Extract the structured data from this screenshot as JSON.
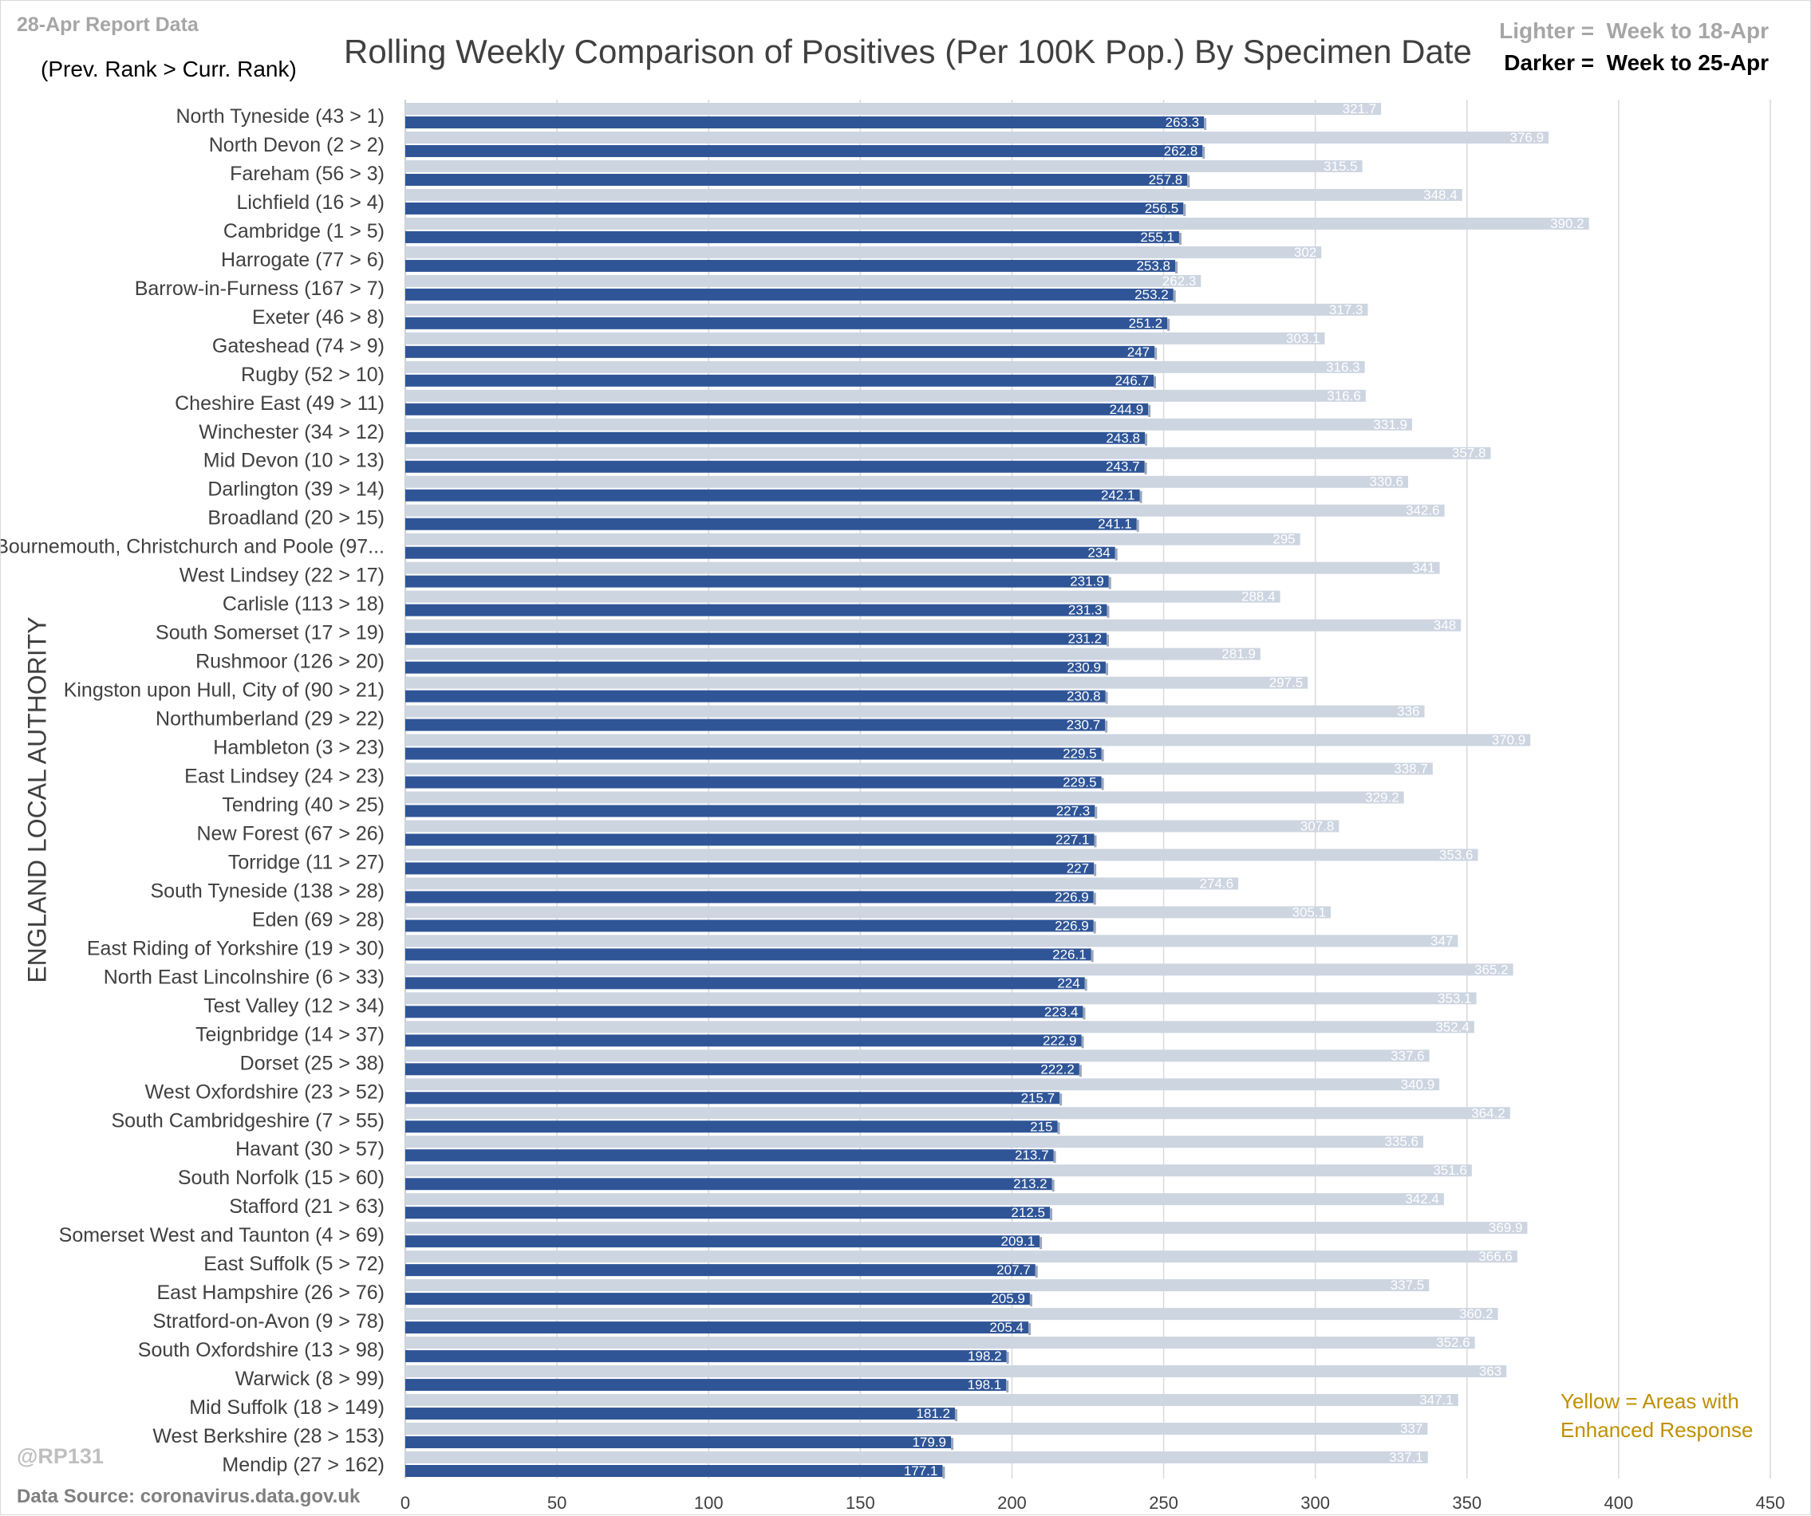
{
  "report_label": "28-Apr Report Data",
  "rank_note": "(Prev. Rank > Curr. Rank)",
  "legend": {
    "lighter_prefix": "Lighter =  ",
    "lighter_text": "Week to 18-Apr",
    "darker_prefix": "Darker =  ",
    "darker_text": "Week to 25-Apr"
  },
  "yellow_note_line1": "Yellow = Areas with",
  "yellow_note_line2": "Enhanced Response",
  "handle": "@RP131",
  "source": "Data Source: coronavirus.data.gov.uk",
  "colors": {
    "lighter": "#cdd5e1",
    "darker": "#2f5597",
    "grid": "#d9d9d9",
    "label": "#404040",
    "yellow_note": "#bf9000"
  },
  "chart_data": {
    "type": "bar",
    "orientation": "horizontal",
    "title": "Rolling Weekly Comparison of Positives  (Per 100K Pop.) By Specimen Date",
    "xlabel": "",
    "ylabel": "ENGLAND LOCAL AUTHORITY",
    "xlim": [
      0,
      450
    ],
    "xticks": [
      0,
      50,
      100,
      150,
      200,
      250,
      300,
      350,
      400,
      450
    ],
    "grid": "vertical",
    "legend_position": "top-right",
    "categories": [
      "North Tyneside (43 > 1)",
      "North Devon (2 > 2)",
      "Fareham (56 > 3)",
      "Lichfield (16 > 4)",
      "Cambridge (1 > 5)",
      "Harrogate (77 > 6)",
      "Barrow-in-Furness (167 > 7)",
      "Exeter (46 > 8)",
      "Gateshead (74 > 9)",
      "Rugby (52 > 10)",
      "Cheshire East (49 > 11)",
      "Winchester (34 > 12)",
      "Mid Devon (10 > 13)",
      "Darlington (39 > 14)",
      "Broadland (20 > 15)",
      "Bournemouth, Christchurch and Poole (97...",
      "West Lindsey (22 > 17)",
      "Carlisle (113 > 18)",
      "South Somerset (17 > 19)",
      "Rushmoor (126 > 20)",
      "Kingston upon Hull, City of (90 > 21)",
      "Northumberland (29 > 22)",
      "Hambleton (3 > 23)",
      "East Lindsey (24 > 23)",
      "Tendring (40 > 25)",
      "New Forest (67 > 26)",
      "Torridge (11 > 27)",
      "South Tyneside (138 > 28)",
      "Eden (69 > 28)",
      "East Riding of Yorkshire (19 > 30)",
      "North East Lincolnshire (6 > 33)",
      "Test Valley (12 > 34)",
      "Teignbridge (14 > 37)",
      "Dorset (25 > 38)",
      "West Oxfordshire (23 > 52)",
      "South Cambridgeshire (7 > 55)",
      "Havant (30 > 57)",
      "South Norfolk (15 > 60)",
      "Stafford (21 > 63)",
      "Somerset West and Taunton (4 > 69)",
      "East Suffolk (5 > 72)",
      "East Hampshire (26 > 76)",
      "Stratford-on-Avon (9 > 78)",
      "South Oxfordshire (13 > 98)",
      "Warwick (8 > 99)",
      "Mid Suffolk (18 > 149)",
      "West Berkshire (28 > 153)",
      "Mendip (27 > 162)"
    ],
    "series": [
      {
        "name": "Week to 18-Apr",
        "values": [
          321.7,
          376.9,
          315.5,
          348.4,
          390.2,
          302,
          262.3,
          317.3,
          303.1,
          316.3,
          316.6,
          331.9,
          357.8,
          330.6,
          342.6,
          295,
          341,
          288.4,
          348,
          281.9,
          297.5,
          336,
          370.9,
          338.7,
          329.2,
          307.8,
          353.6,
          274.6,
          305.1,
          347,
          365.2,
          353.1,
          352.4,
          337.6,
          340.9,
          364.2,
          335.6,
          351.6,
          342.4,
          369.9,
          366.6,
          337.5,
          360.2,
          352.6,
          363,
          347.1,
          337,
          337.1
        ]
      },
      {
        "name": "Week to 25-Apr",
        "values": [
          263.3,
          262.8,
          257.8,
          256.5,
          255.1,
          253.8,
          253.2,
          251.2,
          247,
          246.7,
          244.9,
          243.8,
          243.7,
          242.1,
          241.1,
          234,
          231.9,
          231.3,
          231.2,
          230.9,
          230.8,
          230.7,
          229.5,
          229.5,
          227.3,
          227.1,
          227,
          226.9,
          226.9,
          226.1,
          224,
          223.4,
          222.9,
          222.2,
          215.7,
          215,
          213.7,
          213.2,
          212.5,
          209.1,
          207.7,
          205.9,
          205.4,
          198.2,
          198.1,
          181.2,
          179.9,
          177.1
        ]
      }
    ]
  }
}
